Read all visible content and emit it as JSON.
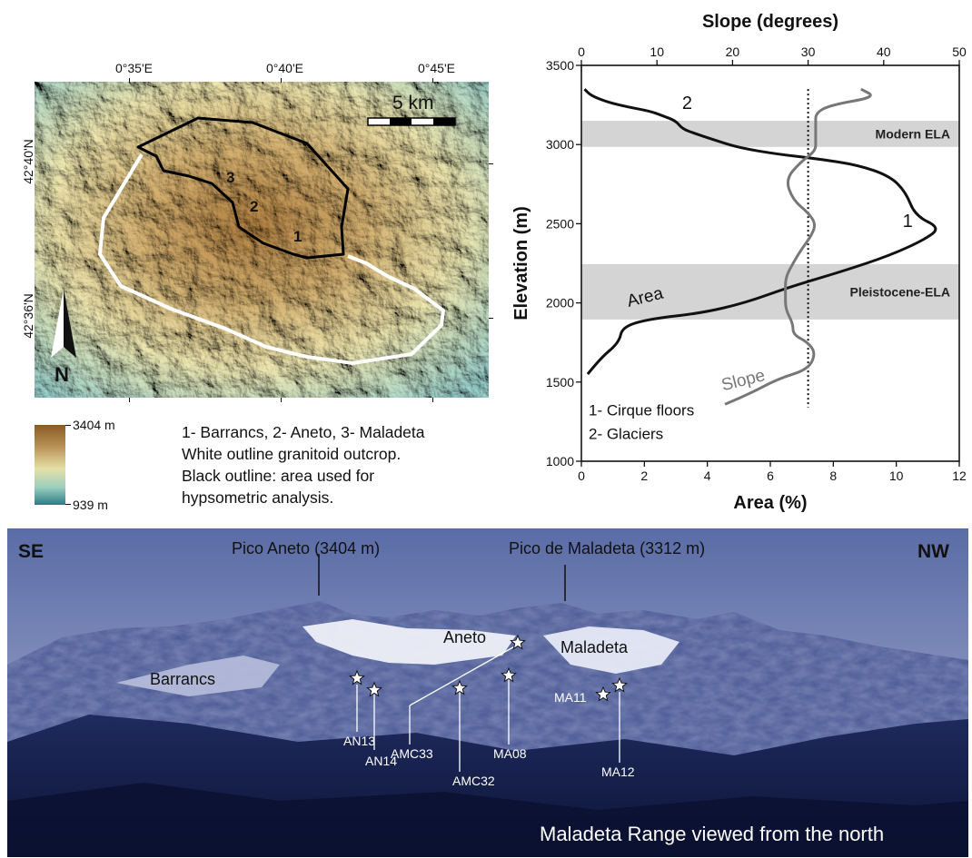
{
  "map": {
    "lon_labels": [
      "0°35'E",
      "0°40'E",
      "0°45'E"
    ],
    "lat_labels": [
      "42°40'N",
      "42°36'N"
    ],
    "scale_label": "5 km",
    "north_label": "N",
    "zone_labels": [
      "1",
      "2",
      "3"
    ]
  },
  "legend": {
    "max_label": "3404 m",
    "min_label": "939 m"
  },
  "caption": {
    "line1": "1- Barrancs, 2- Aneto, 3- Maladeta",
    "line2": "White outline granitoid outcrop.",
    "line3": "Black outline: area used for",
    "line4": "hypsometric analysis."
  },
  "chart_data": {
    "type": "line",
    "xlabel": "Area (%)",
    "x2label": "Slope (degrees)",
    "ylabel": "Elevation (m)",
    "xlim": [
      0,
      12
    ],
    "x2lim": [
      0,
      50
    ],
    "ylim": [
      1000,
      3500
    ],
    "x_ticks": [
      0,
      2,
      4,
      6,
      8,
      10,
      12
    ],
    "x2_ticks": [
      0,
      10,
      20,
      30,
      40,
      50
    ],
    "y_ticks": [
      1000,
      1500,
      2000,
      2500,
      3000,
      3500
    ],
    "bands": [
      {
        "label": "Modern ELA",
        "y_range": [
          2985,
          3150
        ]
      },
      {
        "label": "Pleistocene-ELA",
        "y_range": [
          1895,
          2245
        ]
      }
    ],
    "reference_line": {
      "axis": "slope",
      "value": 30,
      "style": "dotted"
    },
    "series": [
      {
        "name": "Area",
        "axis": "area",
        "x": [
          0.2,
          0.6,
          1.2,
          1.3,
          2.2,
          3.8,
          5.2,
          6.6,
          8.3,
          9.8,
          10.9,
          11.4,
          10.6,
          10.3,
          9.8,
          8.8,
          7.5,
          6.2,
          5.0,
          4.2,
          3.6,
          3.2,
          3.0,
          2.6,
          2.2,
          1.4,
          0.8,
          0.3,
          0.1
        ],
        "y": [
          1550,
          1650,
          1750,
          1850,
          1900,
          1935,
          2000,
          2100,
          2200,
          2300,
          2400,
          2475,
          2550,
          2700,
          2800,
          2870,
          2910,
          2940,
          2980,
          3030,
          3070,
          3100,
          3150,
          3180,
          3210,
          3240,
          3270,
          3310,
          3350
        ]
      },
      {
        "name": "Slope",
        "axis": "slope",
        "x": [
          19,
          22,
          26,
          30,
          31,
          30,
          28,
          28,
          27,
          27,
          27,
          28,
          29,
          30.5,
          31,
          30,
          28,
          27,
          29,
          31,
          31,
          31,
          31,
          33,
          39,
          37
        ],
        "y": [
          1360,
          1420,
          1520,
          1580,
          1680,
          1750,
          1800,
          1870,
          1960,
          2060,
          2160,
          2250,
          2330,
          2430,
          2500,
          2570,
          2650,
          2780,
          2890,
          2960,
          3030,
          3130,
          3200,
          3250,
          3300,
          3350
        ]
      }
    ],
    "annotations": [
      {
        "text": "1",
        "x": 10.2,
        "y": 2480
      },
      {
        "text": "2",
        "x": 3.2,
        "y": 3225
      },
      {
        "text": "Area",
        "x": 1.5,
        "y": 1975
      },
      {
        "text": "Slope",
        "x": 4.5,
        "y": 1445
      }
    ],
    "legend_lines": [
      "1- Cirque floors",
      "2- Glaciers"
    ]
  },
  "photo": {
    "dir_left": "SE",
    "dir_right": "NW",
    "peak1": "Pico Aneto (3404 m)",
    "peak2": "Pico de Maladeta (3312 m)",
    "glacier_barrancs": "Barrancs",
    "glacier_aneto": "Aneto",
    "glacier_maladeta": "Maladeta",
    "samples": [
      "AN13",
      "AN14",
      "AMC33",
      "AMC32",
      "MA08",
      "MA11",
      "MA12"
    ],
    "caption": "Maladeta Range viewed from the north"
  }
}
